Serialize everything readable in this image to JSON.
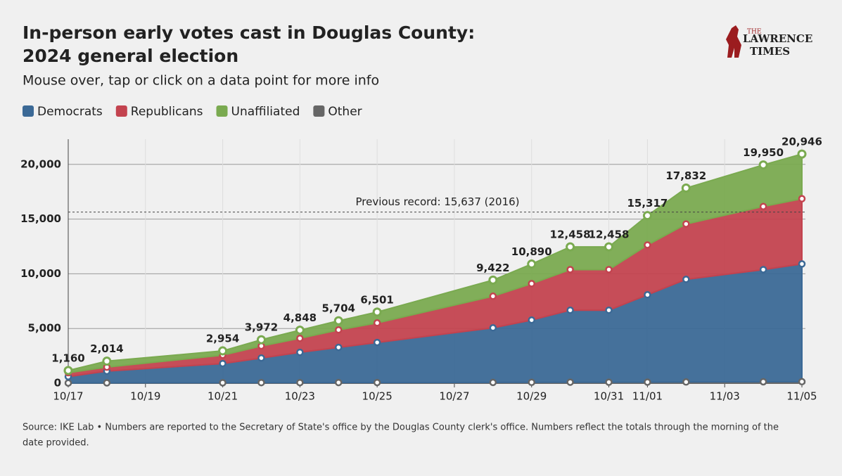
{
  "chart_data": {
    "type": "area",
    "stacked": true,
    "title": "In-person early votes cast in Douglas County:",
    "title_line2": "2024 general election",
    "subtitle": "Mouse over, tap or click on a data point for more info",
    "source": "Source: IKE Lab • Numbers are reported to the Secretary of State's office by the Douglas County clerk's office. Numbers reflect the totals through the morning of the",
    "source_line2": "date provided.",
    "logo": {
      "top": "THE",
      "middle": "LAWRENCE",
      "bottom": "TIMES"
    },
    "x": [
      "10/17",
      "10/18",
      "10/21",
      "10/22",
      "10/23",
      "10/24",
      "10/25",
      "10/28",
      "10/29",
      "10/30",
      "10/31",
      "11/01",
      "11/02",
      "11/04",
      "11/05"
    ],
    "xticks": [
      "10/17",
      "10/19",
      "10/21",
      "10/23",
      "10/25",
      "10/27",
      "10/29",
      "10/31",
      "11/01",
      "11/03",
      "11/05"
    ],
    "series": [
      {
        "name": "Democrats",
        "color": "#3b6996",
        "values": [
          580,
          1070,
          1755,
          2250,
          2770,
          3210,
          3660,
          4990,
          5690,
          6580,
          6580,
          7980,
          9380,
          10250,
          10760
        ]
      },
      {
        "name": "Republicans",
        "color": "#c3434f",
        "values": [
          360,
          370,
          765,
          1100,
          1280,
          1600,
          1790,
          2890,
          3330,
          3710,
          3710,
          4550,
          5060,
          5770,
          5960
        ]
      },
      {
        "name": "Unaffiliated",
        "color": "#7aaa50",
        "values": [
          200,
          544,
          394,
          572,
          748,
          834,
          991,
          1472,
          1790,
          2078,
          2078,
          2687,
          3282,
          3800,
          4086
        ]
      },
      {
        "name": "Other",
        "color": "#666666",
        "values": [
          20,
          30,
          40,
          50,
          50,
          60,
          60,
          70,
          80,
          90,
          90,
          100,
          110,
          130,
          140
        ]
      }
    ],
    "totals": [
      1160,
      2014,
      2954,
      3972,
      4848,
      5704,
      6501,
      9422,
      10890,
      12458,
      12458,
      15317,
      17832,
      19950,
      20946
    ],
    "total_labels": [
      "1,160",
      "2,014",
      "2,954",
      "3,972",
      "4,848",
      "5,704",
      "6,501",
      "9,422",
      "10,890",
      "12,458",
      "12,458",
      "15,317",
      "17,832",
      "19,950",
      "20,946"
    ],
    "reference_line": {
      "value": 15637,
      "label": "Previous record: 15,637 (2016)"
    },
    "ylim": [
      0,
      22300
    ],
    "yticks": [
      0,
      {
        "value": 5000,
        "label": "5,000"
      },
      {
        "value": 10000,
        "label": "10,000"
      },
      {
        "value": 15000,
        "label": "15,000"
      },
      {
        "value": 20000,
        "label": "20,000"
      }
    ],
    "grid": true
  }
}
